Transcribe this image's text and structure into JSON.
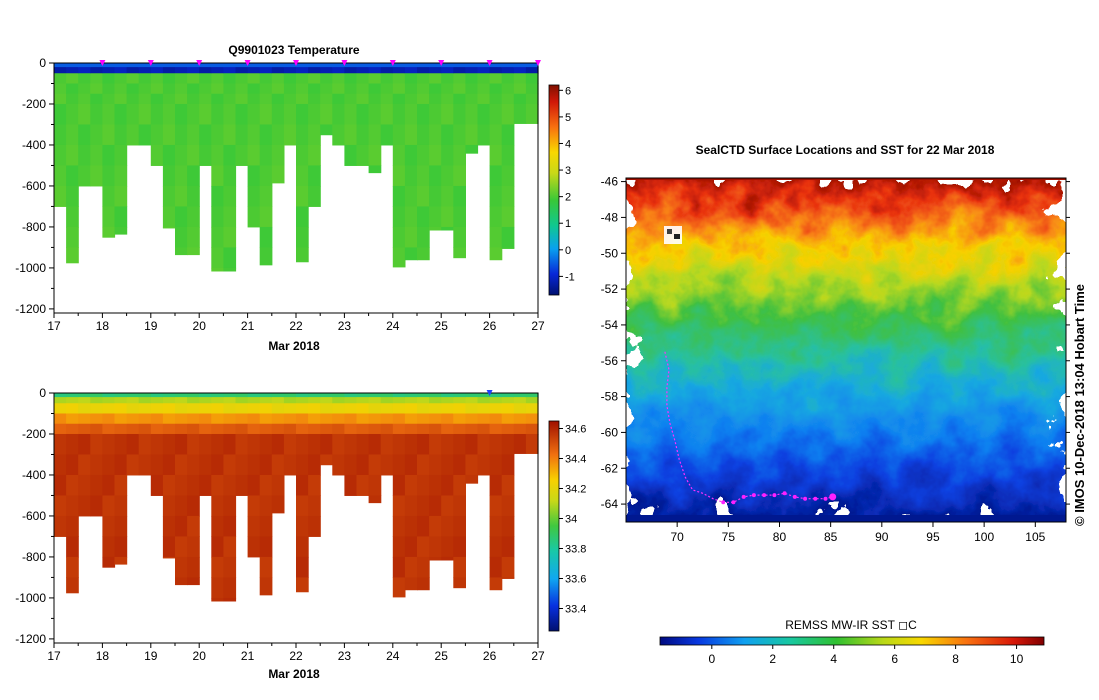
{
  "charts": {
    "temperature": {
      "title": "Q9901023  Temperature",
      "xlabel": "Mar 2018",
      "xticks": [
        "17",
        "18",
        "19",
        "20",
        "21",
        "22",
        "23",
        "24",
        "25",
        "26",
        "27"
      ],
      "yticks": [
        "0",
        "-200",
        "-400",
        "-600",
        "-800",
        "-1000",
        "-1200"
      ],
      "colorbar_ticks": [
        "6",
        "5",
        "4",
        "3",
        "2",
        "1",
        "0",
        "-1"
      ]
    },
    "salinity": {
      "title": "",
      "xlabel": "Mar 2018",
      "xticks": [
        "17",
        "18",
        "19",
        "20",
        "21",
        "22",
        "23",
        "24",
        "25",
        "26",
        "27"
      ],
      "yticks": [
        "0",
        "-200",
        "-400",
        "-600",
        "-800",
        "-1000",
        "-1200"
      ],
      "colorbar_ticks": [
        "34.6",
        "34.4",
        "34.2",
        "34",
        "33.8",
        "33.6",
        "33.4"
      ]
    },
    "map": {
      "title": "SealCTD Surface Locations and SST for 22 Mar 2018",
      "xticks": [
        "70",
        "75",
        "80",
        "85",
        "90",
        "95",
        "100",
        "105"
      ],
      "yticks": [
        "-46",
        "-48",
        "-50",
        "-52",
        "-54",
        "-56",
        "-58",
        "-60",
        "-62",
        "-64"
      ],
      "side_label": "© IMOS 10-Dec-2018 13:04 Hobart Time",
      "colorbar_title": "REMSS MW-IR SST ◻C",
      "colorbar_ticks": [
        "0",
        "2",
        "4",
        "6",
        "8",
        "10"
      ]
    }
  },
  "chart_data": [
    {
      "type": "heatmap",
      "title": "Q9901023  Temperature",
      "xlabel": "Mar 2018",
      "ylabel": "",
      "xlim": [
        17,
        27
      ],
      "ylim": [
        -1220,
        0
      ],
      "clim": [
        -1.7,
        6.2
      ],
      "profile_time": [
        17.0,
        17.25,
        17.5,
        17.75,
        18.0,
        18.25,
        18.5,
        18.75,
        19.0,
        19.25,
        19.5,
        19.75,
        20.0,
        20.25,
        20.5,
        20.75,
        21.0,
        21.25,
        21.5,
        21.75,
        22.0,
        22.25,
        22.5,
        22.75,
        23.0,
        23.25,
        23.5,
        23.75,
        24.0,
        24.25,
        24.5,
        24.75,
        25.0,
        25.25,
        25.5,
        25.75,
        26.0,
        26.25,
        26.5,
        26.75
      ],
      "profile_max_depth": [
        -700,
        -975,
        -600,
        -600,
        -850,
        -835,
        -400,
        -400,
        -500,
        -805,
        -935,
        -935,
        -500,
        -1015,
        -1015,
        -500,
        -800,
        -985,
        -585,
        -400,
        -970,
        -700,
        -350,
        -400,
        -500,
        -500,
        -535,
        -400,
        -995,
        -960,
        -960,
        -815,
        -815,
        -950,
        -440,
        -400,
        -960,
        -905,
        -295,
        -295
      ],
      "surface_value": -0.5,
      "upper_cold_layer_value": -1.3,
      "deep_value": 1.9
    },
    {
      "type": "heatmap",
      "title": "",
      "xlabel": "Mar 2018",
      "ylabel": "",
      "xlim": [
        17,
        27
      ],
      "ylim": [
        -1220,
        0
      ],
      "clim": [
        33.25,
        34.65
      ],
      "profile_time": [
        17.0,
        17.25,
        17.5,
        17.75,
        18.0,
        18.25,
        18.5,
        18.75,
        19.0,
        19.25,
        19.5,
        19.75,
        20.0,
        20.25,
        20.5,
        20.75,
        21.0,
        21.25,
        21.5,
        21.75,
        22.0,
        22.25,
        22.5,
        22.75,
        23.0,
        23.25,
        23.5,
        23.75,
        24.0,
        24.25,
        24.5,
        24.75,
        25.0,
        25.25,
        25.5,
        25.75,
        26.0,
        26.25,
        26.5,
        26.75
      ],
      "profile_max_depth": [
        -700,
        -975,
        -600,
        -600,
        -850,
        -835,
        -400,
        -400,
        -500,
        -805,
        -935,
        -935,
        -500,
        -1015,
        -1015,
        -500,
        -800,
        -985,
        -585,
        -400,
        -970,
        -700,
        -350,
        -400,
        -500,
        -500,
        -535,
        -400,
        -995,
        -960,
        -960,
        -815,
        -815,
        -950,
        -440,
        -400,
        -960,
        -905,
        -295,
        -295
      ],
      "surface_value": 33.85,
      "deep_value": 34.55
    },
    {
      "type": "heatmap",
      "title": "SealCTD Surface Locations and SST for 22 Mar 2018",
      "xlim": [
        65,
        108
      ],
      "ylim": [
        -65,
        -45.8
      ],
      "clim": [
        -1.7,
        10.9
      ],
      "colorbar_label": "REMSS MW-IR SST ◻C",
      "track": {
        "lon": [
          68.8,
          69.2,
          69.0,
          69.0,
          69.3,
          69.8,
          70.2,
          70.8,
          71.5,
          72.5,
          73.5,
          74.5,
          75.5,
          76.5,
          77.5,
          78.5,
          79.5,
          80.5,
          81.5,
          82.5,
          83.5,
          84.5,
          85.2
        ],
        "lat": [
          -55.5,
          -56.5,
          -57.5,
          -58.5,
          -59.5,
          -60.5,
          -61.5,
          -62.5,
          -63.2,
          -63.4,
          -63.7,
          -63.9,
          -63.9,
          -63.6,
          -63.5,
          -63.5,
          -63.5,
          -63.4,
          -63.6,
          -63.7,
          -63.7,
          -63.7,
          -63.6
        ]
      }
    }
  ]
}
